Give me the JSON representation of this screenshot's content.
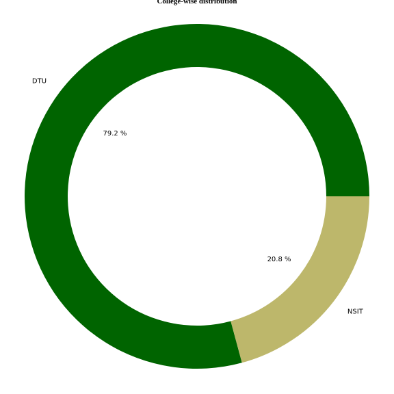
{
  "chart_data": {
    "type": "pie",
    "title": "College-wise distribution",
    "donut": true,
    "labels": [
      "DTU",
      "NSIT"
    ],
    "values": [
      79.2,
      20.8
    ],
    "percent_labels": [
      "79.2 %",
      "20.8 %"
    ],
    "colors": [
      "#006400",
      "#bdb76b"
    ]
  }
}
